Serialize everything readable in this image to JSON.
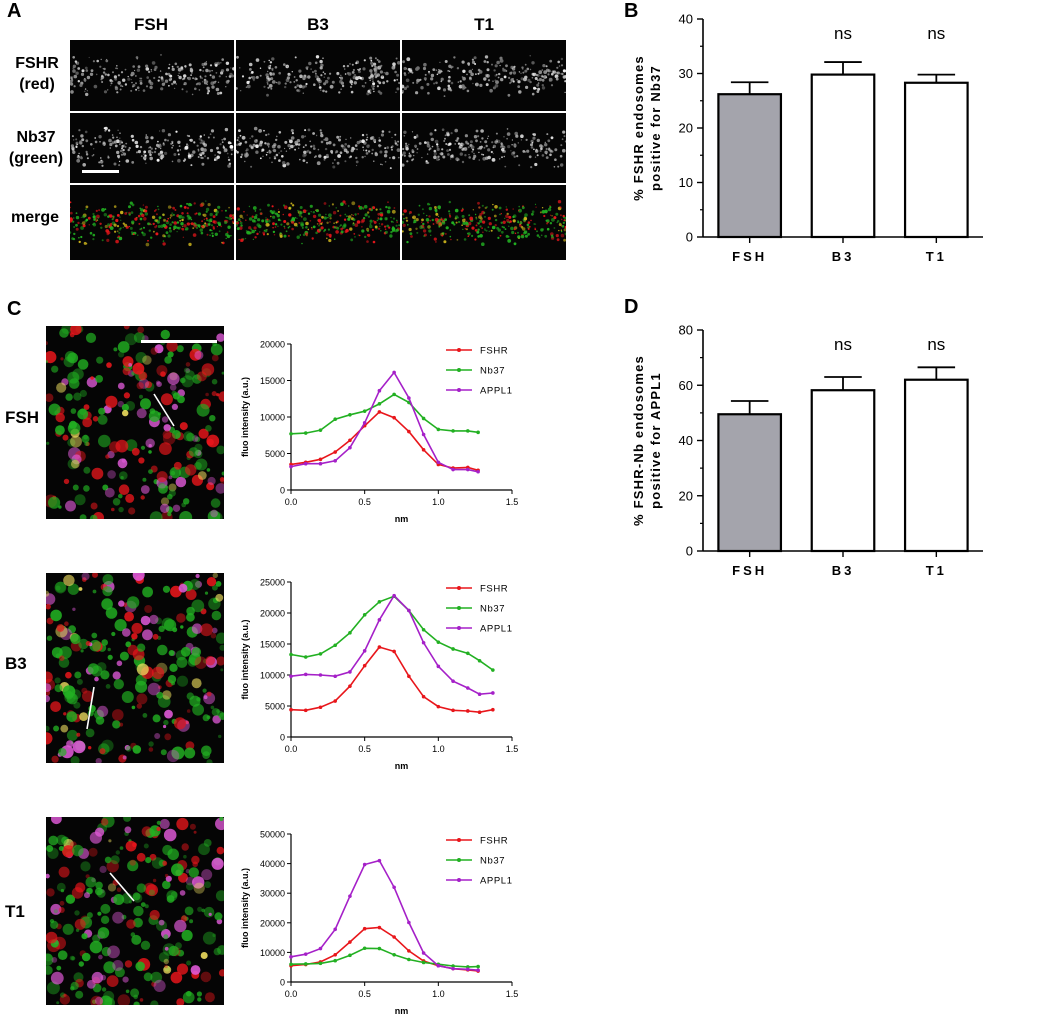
{
  "panels": {
    "a": {
      "letter": "A",
      "columns": [
        "FSH",
        "B3",
        "T1"
      ],
      "rows": [
        {
          "label_line1": "FSHR",
          "label_line2": "(red)",
          "channel": "gray"
        },
        {
          "label_line1": "Nb37",
          "label_line2": "(green)",
          "channel": "gray"
        },
        {
          "label_line1": "merge",
          "label_line2": "",
          "channel": "merge"
        }
      ]
    },
    "b": {
      "letter": "B"
    },
    "c": {
      "letter": "C",
      "rows": [
        {
          "label": "FSH",
          "profile_index": 0
        },
        {
          "label": "B3",
          "profile_index": 1
        },
        {
          "label": "T1",
          "profile_index": 2
        }
      ]
    },
    "d": {
      "letter": "D"
    }
  },
  "colors": {
    "fshr": "#e8161b",
    "nb37": "#22b022",
    "appl1": "#a520c8",
    "fsh_bar": "#a4a4ac",
    "open_bar": "#ffffff",
    "axis": "#000000"
  },
  "chart_data": [
    {
      "id": "B",
      "type": "bar",
      "categories": [
        "FSH",
        "B3",
        "T1"
      ],
      "values": [
        26.2,
        29.8,
        28.3
      ],
      "errors": [
        2.2,
        2.3,
        1.5
      ],
      "annotations": [
        "",
        "ns",
        "ns"
      ],
      "ylabel_line1": "% FSHR endosomes",
      "ylabel_line2": "positive for Nb37",
      "ylim": [
        0,
        40
      ],
      "yticks": [
        0,
        10,
        20,
        30,
        40
      ],
      "bar_fill": [
        "#a4a4ac",
        "#ffffff",
        "#ffffff"
      ]
    },
    {
      "id": "D",
      "type": "bar",
      "categories": [
        "FSH",
        "B3",
        "T1"
      ],
      "values": [
        49.5,
        58.2,
        62.0
      ],
      "errors": [
        4.8,
        4.8,
        4.5
      ],
      "annotations": [
        "",
        "ns",
        "ns"
      ],
      "ylabel_line1": "% FSHR-Nb endosomes",
      "ylabel_line2": "positive for APPL1",
      "ylim": [
        0,
        80
      ],
      "yticks": [
        0,
        20,
        40,
        60,
        80
      ],
      "bar_fill": [
        "#a4a4ac",
        "#ffffff",
        "#ffffff"
      ]
    },
    {
      "id": "C-FSH",
      "type": "line",
      "xlabel": "nm",
      "ylabel": "fluo intensity (a.u.)",
      "xlim": [
        0,
        1.5
      ],
      "ylim": [
        0,
        20000
      ],
      "xticks": [
        0.0,
        0.5,
        1.0,
        1.5
      ],
      "yticks": [
        0,
        5000,
        10000,
        15000,
        20000
      ],
      "x": [
        0,
        0.1,
        0.2,
        0.3,
        0.4,
        0.5,
        0.6,
        0.7,
        0.8,
        0.9,
        1.0,
        1.1,
        1.2,
        1.27
      ],
      "series": [
        {
          "name": "FSHR",
          "color": "#e8161b",
          "values": [
            3500,
            3800,
            4200,
            5200,
            6800,
            8800,
            10700,
            9900,
            8000,
            5500,
            3500,
            3000,
            3100,
            2700
          ]
        },
        {
          "name": "Nb37",
          "color": "#22b022",
          "values": [
            7700,
            7800,
            8200,
            9700,
            10300,
            10800,
            11800,
            13100,
            12000,
            9800,
            8300,
            8100,
            8100,
            7900
          ]
        },
        {
          "name": "APPL1",
          "color": "#a520c8",
          "values": [
            3200,
            3600,
            3600,
            4000,
            5800,
            9200,
            13600,
            16100,
            12600,
            7600,
            3800,
            2800,
            2800,
            2500
          ]
        }
      ]
    },
    {
      "id": "C-B3",
      "type": "line",
      "xlabel": "nm",
      "ylabel": "fluo intensity (a.u.)",
      "xlim": [
        0,
        1.5
      ],
      "ylim": [
        0,
        25000
      ],
      "xticks": [
        0.0,
        0.5,
        1.0,
        1.5
      ],
      "yticks": [
        0,
        5000,
        10000,
        15000,
        20000,
        25000
      ],
      "x": [
        0,
        0.1,
        0.2,
        0.3,
        0.4,
        0.5,
        0.6,
        0.7,
        0.8,
        0.9,
        1.0,
        1.1,
        1.2,
        1.28,
        1.37
      ],
      "series": [
        {
          "name": "FSHR",
          "color": "#e8161b",
          "values": [
            4400,
            4300,
            4800,
            5800,
            8200,
            11500,
            14500,
            13800,
            9800,
            6500,
            4900,
            4300,
            4200,
            4000,
            4400
          ]
        },
        {
          "name": "Nb37",
          "color": "#22b022",
          "values": [
            13300,
            12900,
            13400,
            14800,
            16800,
            19700,
            21800,
            22700,
            20400,
            17300,
            15300,
            14200,
            13500,
            12300,
            10800
          ]
        },
        {
          "name": "APPL1",
          "color": "#a520c8",
          "values": [
            9800,
            10100,
            10000,
            9800,
            10500,
            13900,
            18900,
            22800,
            20400,
            15200,
            11400,
            9000,
            7900,
            6900,
            7100
          ]
        }
      ]
    },
    {
      "id": "C-T1",
      "type": "line",
      "xlabel": "nm",
      "ylabel": "fluo intensity (a.u.)",
      "xlim": [
        0,
        1.5
      ],
      "ylim": [
        0,
        50000
      ],
      "xticks": [
        0.0,
        0.5,
        1.0,
        1.5
      ],
      "yticks": [
        0,
        10000,
        20000,
        30000,
        40000,
        50000
      ],
      "x": [
        0,
        0.1,
        0.2,
        0.3,
        0.4,
        0.5,
        0.6,
        0.7,
        0.8,
        0.9,
        1.0,
        1.1,
        1.2,
        1.27
      ],
      "series": [
        {
          "name": "FSHR",
          "color": "#e8161b",
          "values": [
            5500,
            5900,
            6800,
            9200,
            13500,
            18000,
            18400,
            15200,
            10500,
            7100,
            5500,
            4500,
            4100,
            3700
          ]
        },
        {
          "name": "Nb37",
          "color": "#22b022",
          "values": [
            6000,
            6100,
            6300,
            7200,
            9000,
            11400,
            11300,
            9200,
            7600,
            6600,
            6000,
            5400,
            5100,
            5200
          ]
        },
        {
          "name": "APPL1",
          "color": "#a520c8",
          "values": [
            8500,
            9400,
            11300,
            17800,
            29000,
            39700,
            41000,
            32000,
            20100,
            9800,
            5500,
            4500,
            4300,
            4000
          ]
        }
      ]
    }
  ]
}
